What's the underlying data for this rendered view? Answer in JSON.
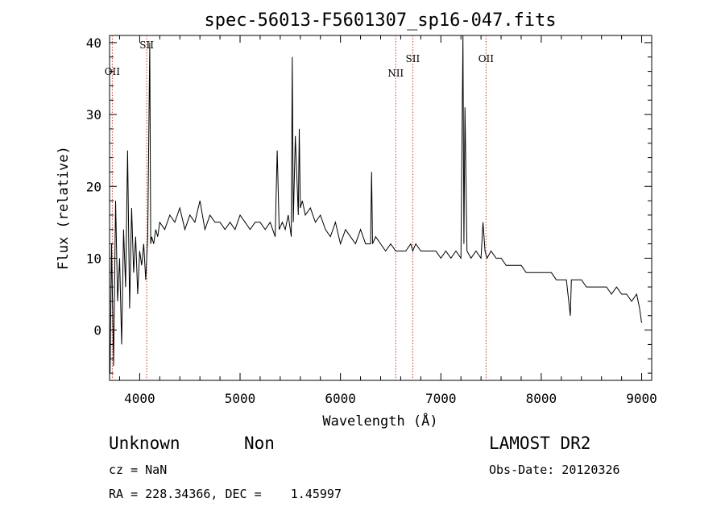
{
  "chart_data": {
    "type": "line",
    "title": "spec-56013-F5601307_sp16-047.fits",
    "xlabel": "Wavelength (Å)",
    "ylabel": "Flux (relative)",
    "xlim": [
      3700,
      9100
    ],
    "ylim": [
      -7,
      41
    ],
    "xticks": [
      4000,
      5000,
      6000,
      7000,
      8000,
      9000
    ],
    "yticks": [
      0,
      10,
      20,
      30,
      40
    ],
    "grid": false,
    "line_color": "#000000",
    "marker_color": "#c0392b",
    "emission_lines": [
      {
        "label": "OII",
        "x": 3727
      },
      {
        "label": "SII",
        "x": 4070
      },
      {
        "label": "NII",
        "x": 6550
      },
      {
        "label": "SII",
        "x": 6720
      },
      {
        "label": "OII",
        "x": 7450
      }
    ],
    "spectrum": {
      "x": [
        3705,
        3720,
        3740,
        3760,
        3780,
        3800,
        3820,
        3840,
        3860,
        3880,
        3900,
        3920,
        3940,
        3960,
        3980,
        4000,
        4020,
        4040,
        4060,
        4080,
        4100,
        4110,
        4120,
        4140,
        4160,
        4180,
        4200,
        4250,
        4300,
        4350,
        4400,
        4450,
        4500,
        4550,
        4600,
        4650,
        4700,
        4750,
        4800,
        4850,
        4900,
        4950,
        5000,
        5050,
        5100,
        5150,
        5200,
        5250,
        5300,
        5350,
        5370,
        5390,
        5420,
        5450,
        5480,
        5510,
        5520,
        5530,
        5550,
        5580,
        5590,
        5600,
        5620,
        5650,
        5700,
        5750,
        5800,
        5850,
        5900,
        5950,
        6000,
        6050,
        6100,
        6150,
        6200,
        6250,
        6300,
        6310,
        6320,
        6350,
        6400,
        6450,
        6500,
        6550,
        6600,
        6650,
        6700,
        6720,
        6750,
        6800,
        6850,
        6900,
        6950,
        7000,
        7050,
        7100,
        7150,
        7200,
        7220,
        7230,
        7240,
        7260,
        7300,
        7350,
        7400,
        7420,
        7440,
        7460,
        7500,
        7550,
        7600,
        7650,
        7700,
        7750,
        7800,
        7850,
        7900,
        7950,
        8000,
        8050,
        8100,
        8150,
        8200,
        8250,
        8290,
        8300,
        8350,
        8400,
        8450,
        8500,
        8550,
        8600,
        8650,
        8700,
        8750,
        8800,
        8850,
        8900,
        8950,
        8980,
        9000
      ],
      "y": [
        -6,
        12,
        -5,
        18,
        4,
        10,
        -2,
        14,
        6,
        25,
        3,
        17,
        8,
        13,
        5,
        11,
        9,
        12,
        7,
        13,
        40,
        12,
        13,
        12,
        14,
        13,
        15,
        14,
        16,
        15,
        17,
        14,
        16,
        15,
        18,
        14,
        16,
        15,
        15,
        14,
        15,
        14,
        16,
        15,
        14,
        15,
        15,
        14,
        15,
        13,
        25,
        14,
        15,
        14,
        16,
        13,
        38,
        15,
        27,
        16,
        28,
        17,
        18,
        16,
        17,
        15,
        16,
        14,
        13,
        15,
        12,
        14,
        13,
        12,
        14,
        12,
        12,
        22,
        12,
        13,
        12,
        11,
        12,
        11,
        11,
        11,
        12,
        11,
        12,
        11,
        11,
        11,
        11,
        10,
        11,
        10,
        11,
        10,
        41,
        12,
        31,
        11,
        10,
        11,
        10,
        15,
        11,
        10,
        11,
        10,
        10,
        9,
        9,
        9,
        9,
        8,
        8,
        8,
        8,
        8,
        8,
        7,
        7,
        7,
        2,
        7,
        7,
        7,
        6,
        6,
        6,
        6,
        6,
        5,
        6,
        5,
        5,
        4,
        5,
        3,
        1
      ]
    }
  },
  "info": {
    "class": "Unknown",
    "subclass": "Non",
    "survey": "LAMOST DR2",
    "cz": "cz = NaN",
    "obs_date": "Obs-Date: 20120326",
    "coords": "RA = 228.34366, DEC =    1.45997"
  }
}
